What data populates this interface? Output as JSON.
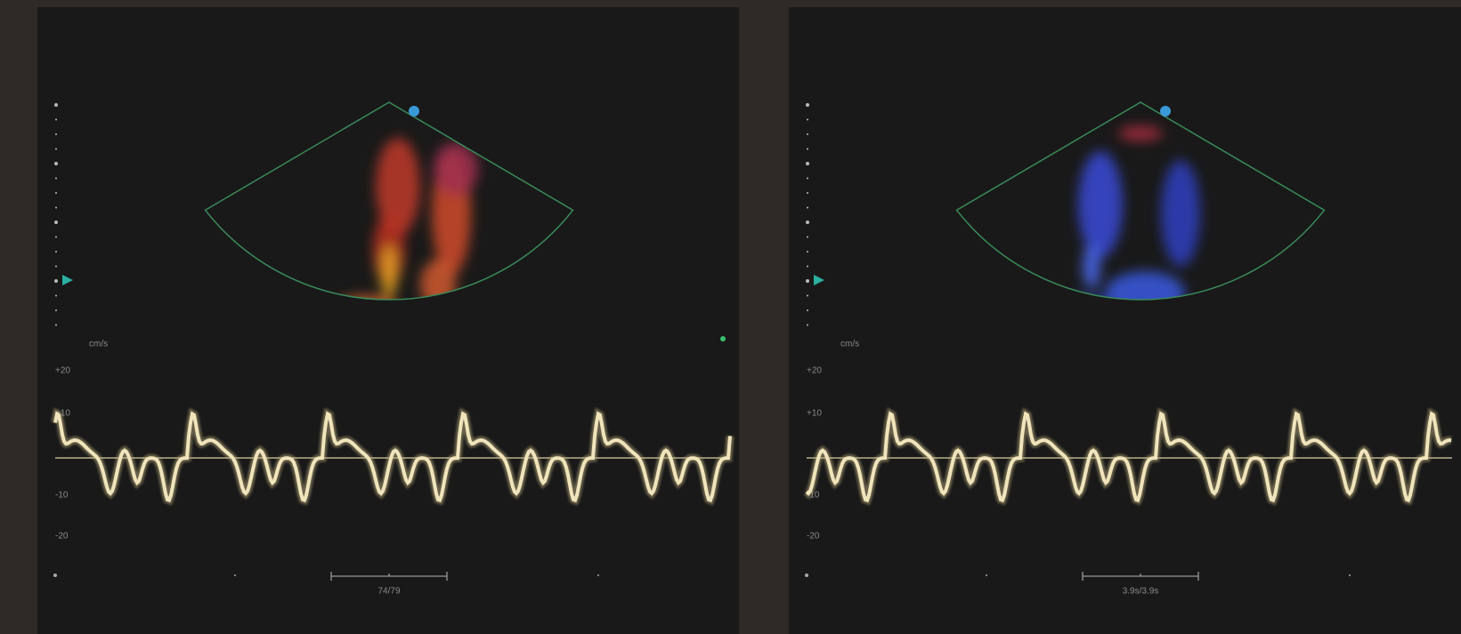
{
  "panels": [
    {
      "unit": "cm/s",
      "ticks": [
        "+20",
        "+10",
        "-10",
        "-20"
      ],
      "footer": "74/79"
    },
    {
      "unit": "cm/s",
      "ticks": [
        "+20",
        "+10",
        "-10",
        "-20"
      ],
      "footer": "3.9s/3.9s"
    }
  ]
}
